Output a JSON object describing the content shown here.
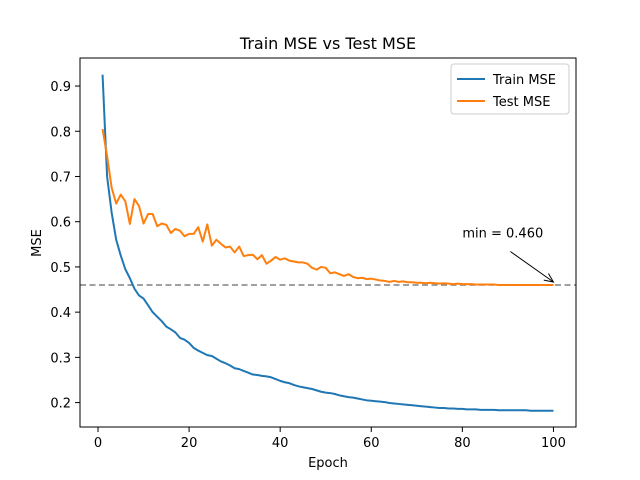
{
  "chart_data": {
    "type": "line",
    "title": "Train MSE vs Test MSE",
    "xlabel": "Epoch",
    "ylabel": "MSE",
    "xlim": [
      -3.95,
      104.95
    ],
    "ylim": [
      0.146,
      0.962
    ],
    "xticks": [
      0,
      20,
      40,
      60,
      80,
      100
    ],
    "yticks": [
      0.2,
      0.3,
      0.4,
      0.5,
      0.6,
      0.7,
      0.8,
      0.9
    ],
    "ytick_labels": [
      "0.2",
      "0.3",
      "0.4",
      "0.5",
      "0.6",
      "0.7",
      "0.8",
      "0.9"
    ],
    "legend": {
      "position": "top-right"
    },
    "reference_line": {
      "y": 0.46,
      "color": "#808080",
      "style": "dashed"
    },
    "annotation": {
      "text": "min = 0.460",
      "x": 100,
      "y": 0.46,
      "text_x": 80,
      "text_y": 0.565
    },
    "series": [
      {
        "name": "Train MSE",
        "color": "#1f77b4",
        "x": [
          1,
          2,
          3,
          4,
          5,
          6,
          7,
          8,
          9,
          10,
          11,
          12,
          13,
          14,
          15,
          16,
          17,
          18,
          19,
          20,
          21,
          22,
          23,
          24,
          25,
          26,
          27,
          28,
          29,
          30,
          31,
          32,
          33,
          34,
          35,
          36,
          37,
          38,
          39,
          40,
          41,
          42,
          43,
          44,
          45,
          46,
          47,
          48,
          49,
          50,
          51,
          52,
          53,
          54,
          55,
          56,
          57,
          58,
          59,
          60,
          61,
          62,
          63,
          64,
          65,
          66,
          67,
          68,
          69,
          70,
          71,
          72,
          73,
          74,
          75,
          76,
          77,
          78,
          79,
          80,
          81,
          82,
          83,
          84,
          85,
          86,
          87,
          88,
          89,
          90,
          91,
          92,
          93,
          94,
          95,
          96,
          97,
          98,
          99,
          100
        ],
        "y": [
          0.925,
          0.7,
          0.62,
          0.56,
          0.525,
          0.495,
          0.475,
          0.452,
          0.437,
          0.43,
          0.415,
          0.4,
          0.39,
          0.38,
          0.368,
          0.362,
          0.355,
          0.343,
          0.339,
          0.332,
          0.321,
          0.315,
          0.31,
          0.305,
          0.303,
          0.297,
          0.291,
          0.287,
          0.282,
          0.276,
          0.274,
          0.27,
          0.266,
          0.262,
          0.261,
          0.259,
          0.258,
          0.256,
          0.252,
          0.248,
          0.245,
          0.243,
          0.239,
          0.236,
          0.234,
          0.232,
          0.23,
          0.227,
          0.224,
          0.222,
          0.221,
          0.219,
          0.216,
          0.214,
          0.212,
          0.211,
          0.209,
          0.207,
          0.205,
          0.204,
          0.203,
          0.202,
          0.201,
          0.199,
          0.198,
          0.197,
          0.196,
          0.195,
          0.194,
          0.193,
          0.192,
          0.191,
          0.19,
          0.189,
          0.188,
          0.188,
          0.187,
          0.187,
          0.186,
          0.186,
          0.185,
          0.185,
          0.185,
          0.184,
          0.184,
          0.184,
          0.184,
          0.183,
          0.183,
          0.183,
          0.183,
          0.183,
          0.183,
          0.183,
          0.182,
          0.182,
          0.182,
          0.182,
          0.182,
          0.182
        ]
      },
      {
        "name": "Test MSE",
        "color": "#ff7f0e",
        "x": [
          1,
          2,
          3,
          4,
          5,
          6,
          7,
          8,
          9,
          10,
          11,
          12,
          13,
          14,
          15,
          16,
          17,
          18,
          19,
          20,
          21,
          22,
          23,
          24,
          25,
          26,
          27,
          28,
          29,
          30,
          31,
          32,
          33,
          34,
          35,
          36,
          37,
          38,
          39,
          40,
          41,
          42,
          43,
          44,
          45,
          46,
          47,
          48,
          49,
          50,
          51,
          52,
          53,
          54,
          55,
          56,
          57,
          58,
          59,
          60,
          61,
          62,
          63,
          64,
          65,
          66,
          67,
          68,
          69,
          70,
          71,
          72,
          73,
          74,
          75,
          76,
          77,
          78,
          79,
          80,
          81,
          82,
          83,
          84,
          85,
          86,
          87,
          88,
          89,
          90,
          91,
          92,
          93,
          94,
          95,
          96,
          97,
          98,
          99,
          100
        ],
        "y": [
          0.805,
          0.745,
          0.675,
          0.64,
          0.66,
          0.645,
          0.595,
          0.65,
          0.635,
          0.596,
          0.617,
          0.617,
          0.59,
          0.596,
          0.593,
          0.575,
          0.584,
          0.58,
          0.568,
          0.573,
          0.573,
          0.588,
          0.556,
          0.594,
          0.547,
          0.56,
          0.551,
          0.543,
          0.545,
          0.532,
          0.545,
          0.524,
          0.526,
          0.527,
          0.517,
          0.526,
          0.507,
          0.514,
          0.522,
          0.516,
          0.519,
          0.514,
          0.512,
          0.51,
          0.51,
          0.507,
          0.498,
          0.494,
          0.5,
          0.498,
          0.486,
          0.488,
          0.484,
          0.48,
          0.484,
          0.478,
          0.475,
          0.476,
          0.473,
          0.474,
          0.472,
          0.47,
          0.469,
          0.467,
          0.469,
          0.467,
          0.468,
          0.466,
          0.466,
          0.465,
          0.465,
          0.464,
          0.465,
          0.464,
          0.463,
          0.464,
          0.463,
          0.462,
          0.463,
          0.462,
          0.462,
          0.462,
          0.461,
          0.461,
          0.461,
          0.461,
          0.461,
          0.46,
          0.46,
          0.46,
          0.46,
          0.46,
          0.46,
          0.46,
          0.46,
          0.46,
          0.46,
          0.46,
          0.46,
          0.46
        ]
      }
    ]
  }
}
